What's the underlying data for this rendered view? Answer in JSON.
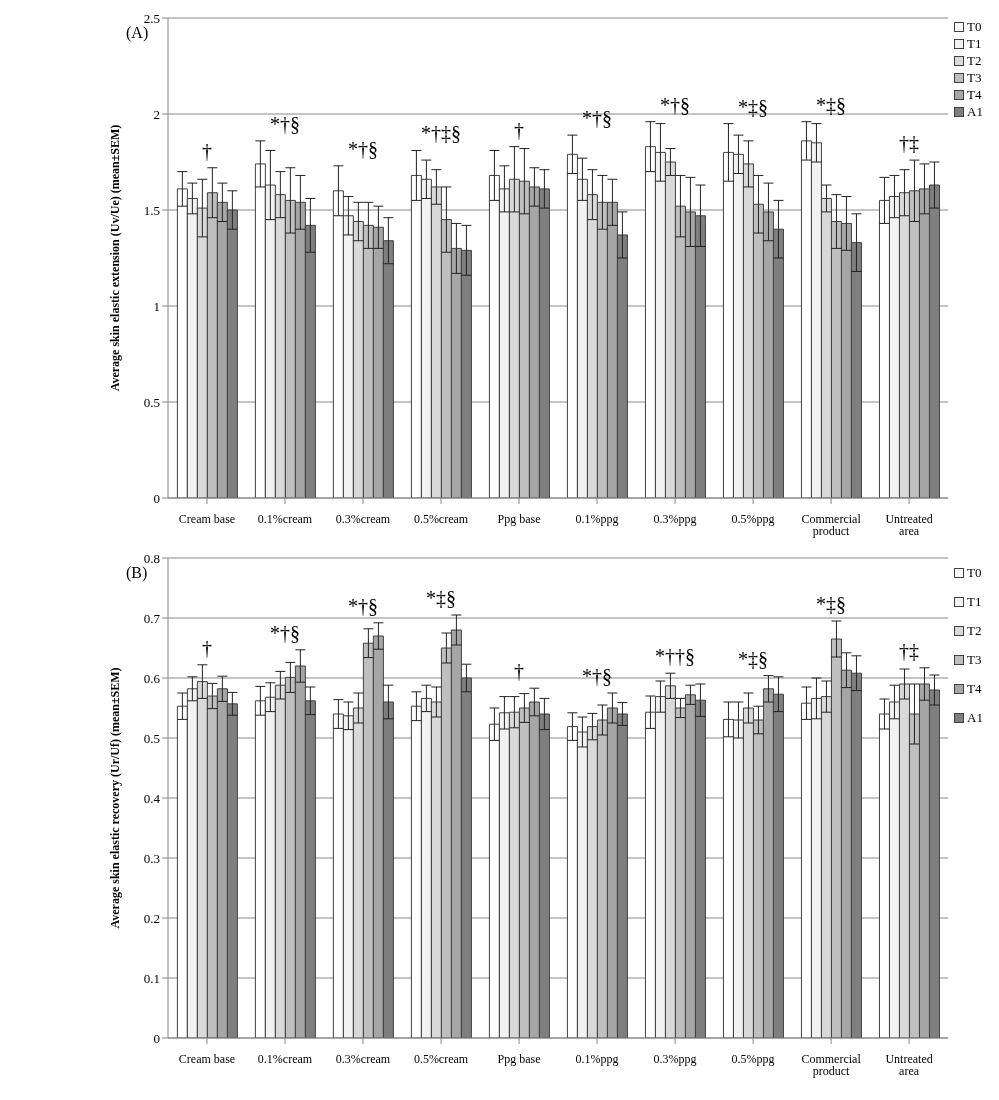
{
  "chart_data": [
    {
      "type": "bar",
      "title": "(A)",
      "ylabel": "Average skin elastic extension (Uv/Ue) (mean±SEM)",
      "categories": [
        "Cream base",
        "0.1%cream",
        "0.3%cream",
        "0.5%cream",
        "Ppg base",
        "0.1%ppg",
        "0.3%ppg",
        "0.5%ppg",
        "Commercial product",
        "Untreated area"
      ],
      "series": [
        {
          "name": "T0",
          "color": "#ffffff",
          "values": [
            1.61,
            1.74,
            1.6,
            1.68,
            1.68,
            1.79,
            1.83,
            1.8,
            1.86,
            1.55
          ],
          "errors": [
            0.09,
            0.12,
            0.13,
            0.13,
            0.13,
            0.1,
            0.13,
            0.15,
            0.1,
            0.12
          ]
        },
        {
          "name": "T1",
          "color": "#f2f2f2",
          "values": [
            1.56,
            1.63,
            1.47,
            1.66,
            1.61,
            1.66,
            1.8,
            1.79,
            1.85,
            1.57
          ],
          "errors": [
            0.08,
            0.18,
            0.1,
            0.1,
            0.12,
            0.11,
            0.15,
            0.1,
            0.1,
            0.11
          ]
        },
        {
          "name": "T2",
          "color": "#d9d9d9",
          "values": [
            1.51,
            1.58,
            1.44,
            1.62,
            1.66,
            1.58,
            1.75,
            1.74,
            1.56,
            1.59
          ],
          "errors": [
            0.15,
            0.12,
            0.1,
            0.09,
            0.17,
            0.13,
            0.07,
            0.12,
            0.07,
            0.12
          ]
        },
        {
          "name": "T3",
          "color": "#bfbfbf",
          "values": [
            1.59,
            1.55,
            1.42,
            1.45,
            1.65,
            1.54,
            1.52,
            1.53,
            1.44,
            1.6
          ],
          "errors": [
            0.13,
            0.17,
            0.12,
            0.17,
            0.17,
            0.14,
            0.16,
            0.15,
            0.14,
            0.16
          ]
        },
        {
          "name": "T4",
          "color": "#a6a6a6",
          "values": [
            1.54,
            1.54,
            1.41,
            1.3,
            1.62,
            1.54,
            1.49,
            1.49,
            1.43,
            1.61
          ],
          "errors": [
            0.1,
            0.14,
            0.11,
            0.13,
            0.1,
            0.12,
            0.18,
            0.15,
            0.14,
            0.13
          ]
        },
        {
          "name": "A1",
          "color": "#7f7f7f",
          "values": [
            1.5,
            1.42,
            1.34,
            1.29,
            1.61,
            1.37,
            1.47,
            1.4,
            1.33,
            1.63
          ],
          "errors": [
            0.1,
            0.14,
            0.12,
            0.13,
            0.1,
            0.12,
            0.16,
            0.15,
            0.15,
            0.12
          ]
        }
      ],
      "ylim": [
        0,
        2.5
      ],
      "yticks": [
        0,
        0.5,
        1,
        1.5,
        2,
        2.5
      ],
      "grid": "y",
      "legend": "top right",
      "annotations": [
        "†",
        "*†§",
        "*†§",
        "*†‡§",
        "†",
        "*†§",
        "*†§",
        "*‡§",
        "*‡§",
        "†‡"
      ]
    },
    {
      "type": "bar",
      "title": "(B)",
      "ylabel": "Average skin elastic recovery (Ur/Uf) (mean±SEM)",
      "categories": [
        "Cream base",
        "0.1%cream",
        "0.3%cream",
        "0.5%cream",
        "Ppg base",
        "0.1%ppg",
        "0.3%ppg",
        "0.5%ppg",
        "Commercial product",
        "Untreated area"
      ],
      "series": [
        {
          "name": "T0",
          "color": "#ffffff",
          "values": [
            0.553,
            0.562,
            0.54,
            0.553,
            0.523,
            0.519,
            0.543,
            0.531,
            0.558,
            0.54
          ],
          "errors": [
            0.022,
            0.024,
            0.024,
            0.024,
            0.027,
            0.023,
            0.027,
            0.029,
            0.027,
            0.025
          ]
        },
        {
          "name": "T1",
          "color": "#f2f2f2",
          "values": [
            0.582,
            0.568,
            0.537,
            0.566,
            0.542,
            0.51,
            0.569,
            0.53,
            0.566,
            0.56
          ],
          "errors": [
            0.02,
            0.024,
            0.023,
            0.022,
            0.027,
            0.025,
            0.026,
            0.03,
            0.034,
            0.028
          ]
        },
        {
          "name": "T2",
          "color": "#d9d9d9",
          "values": [
            0.594,
            0.588,
            0.55,
            0.56,
            0.543,
            0.519,
            0.587,
            0.55,
            0.569,
            0.59
          ],
          "errors": [
            0.028,
            0.023,
            0.025,
            0.025,
            0.026,
            0.022,
            0.021,
            0.025,
            0.026,
            0.025
          ]
        },
        {
          "name": "T3",
          "color": "#bfbfbf",
          "values": [
            0.57,
            0.601,
            0.658,
            0.65,
            0.55,
            0.53,
            0.55,
            0.53,
            0.665,
            0.54
          ],
          "errors": [
            0.021,
            0.025,
            0.024,
            0.025,
            0.024,
            0.025,
            0.016,
            0.023,
            0.03,
            0.05
          ]
        },
        {
          "name": "T4",
          "color": "#a6a6a6",
          "values": [
            0.582,
            0.62,
            0.67,
            0.68,
            0.56,
            0.55,
            0.572,
            0.582,
            0.613,
            0.59
          ],
          "errors": [
            0.021,
            0.027,
            0.022,
            0.025,
            0.023,
            0.025,
            0.016,
            0.022,
            0.029,
            0.027
          ]
        },
        {
          "name": "A1",
          "color": "#7f7f7f",
          "values": [
            0.557,
            0.562,
            0.56,
            0.6,
            0.54,
            0.54,
            0.563,
            0.573,
            0.608,
            0.58
          ],
          "errors": [
            0.019,
            0.023,
            0.028,
            0.023,
            0.026,
            0.019,
            0.027,
            0.029,
            0.029,
            0.025
          ]
        }
      ],
      "ylim": [
        0,
        0.8
      ],
      "yticks": [
        0,
        0.1,
        0.2,
        0.3,
        0.4,
        0.5,
        0.6,
        0.7,
        0.8
      ],
      "grid": "y",
      "legend": "top right",
      "annotations": [
        "†",
        "*†§",
        "*†§",
        "*‡§",
        "†",
        "*†§",
        "*††§",
        "*‡§",
        "*‡§",
        "†‡"
      ]
    }
  ]
}
